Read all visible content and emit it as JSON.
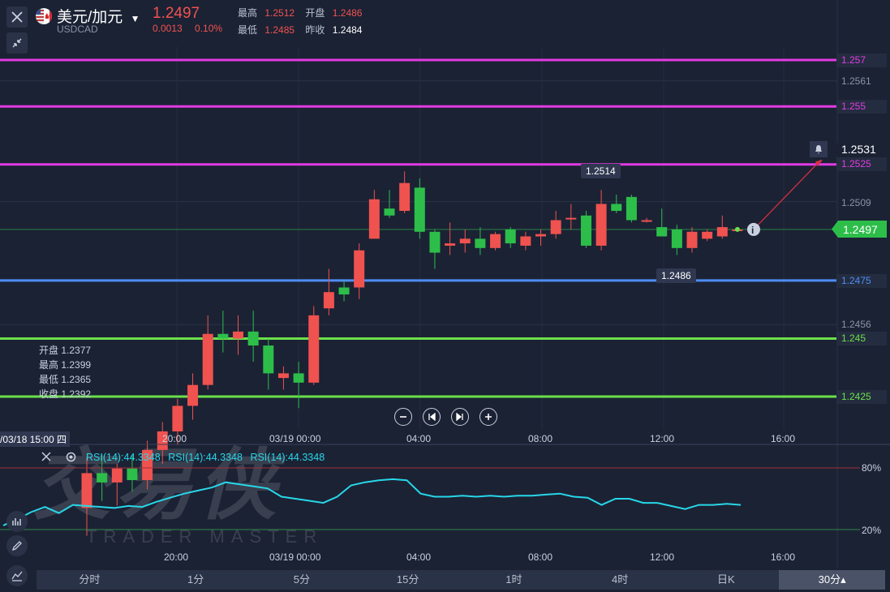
{
  "header": {
    "symbol_name": "美元/加元",
    "symbol_code": "USDCAD",
    "price": "1.2497",
    "change": "0.0013",
    "change_pct": "0.10%",
    "high_label": "最高",
    "high": "1.2512",
    "open_label": "开盘",
    "open": "1.2486",
    "low_label": "最低",
    "low": "1.2485",
    "prev_label": "昨收",
    "prev": "1.2484"
  },
  "levels": {
    "l1257": "1.257",
    "l12561": "1.2561",
    "l1255": "1.255",
    "l12531": "1.2531",
    "l12525": "1.2525",
    "l12509": "1.2509",
    "l12497": "1.2497",
    "l12475": "1.2475",
    "l12456": "1.2456",
    "l1245": "1.245",
    "l12425": "1.2425"
  },
  "bubbles": {
    "high": "1.2514",
    "low": "1.2486"
  },
  "ohlc": {
    "open": "开盘 1.2377",
    "high": "最高 1.2399",
    "low": "最低 1.2365",
    "close": "收盘 1.2392"
  },
  "xaxis": {
    "cursor": "/03/18 15:00 四",
    "t1": "20:00",
    "t2": "03/19 00:00",
    "t3": "04:00",
    "t4": "08:00",
    "t5": "12:00",
    "t6": "16:00"
  },
  "rsi": {
    "label1": "RSI(14):44.3348",
    "label2": "RSI(14):44.3348",
    "label3": "RSI(14):44.3348",
    "upper": "80%",
    "lower": "20%",
    "values": [
      24,
      30,
      37,
      42,
      36,
      44,
      43,
      42,
      41,
      43,
      42,
      47,
      51,
      55,
      58,
      61,
      66,
      64,
      62,
      60,
      52,
      50,
      48,
      46,
      52,
      63,
      66,
      68,
      69,
      68,
      55,
      52,
      52,
      53,
      52,
      53,
      52,
      53,
      53,
      54,
      55,
      52,
      51,
      44,
      50,
      50,
      46,
      46,
      43,
      40,
      44,
      44,
      45,
      44
    ]
  },
  "watermark": {
    "brand": "交易侠",
    "brand_en": "TRADER MASTER"
  },
  "tabs": [
    "分时",
    "1分",
    "5分",
    "15分",
    "1时",
    "4时",
    "日K",
    "30分▴"
  ],
  "colors": {
    "up": "#f0524f",
    "down": "#2dbe4a",
    "magenta": "#e23be3",
    "blue": "#4e8ef5",
    "green": "#6be04b",
    "rsi": "#27d7e8"
  },
  "candles": [
    {
      "o": 1.2377,
      "h": 1.2399,
      "l": 1.2365,
      "c": 1.2392
    },
    {
      "o": 1.2392,
      "h": 1.24,
      "l": 1.238,
      "c": 1.2388
    },
    {
      "o": 1.2388,
      "h": 1.2396,
      "l": 1.2378,
      "c": 1.2394
    },
    {
      "o": 1.2394,
      "h": 1.24,
      "l": 1.2384,
      "c": 1.2389
    },
    {
      "o": 1.2389,
      "h": 1.2406,
      "l": 1.2385,
      "c": 1.2402
    },
    {
      "o": 1.2402,
      "h": 1.2414,
      "l": 1.2396,
      "c": 1.241
    },
    {
      "o": 1.241,
      "h": 1.2424,
      "l": 1.2404,
      "c": 1.2421
    },
    {
      "o": 1.2421,
      "h": 1.2435,
      "l": 1.2415,
      "c": 1.243
    },
    {
      "o": 1.243,
      "h": 1.246,
      "l": 1.2428,
      "c": 1.2452
    },
    {
      "o": 1.2452,
      "h": 1.2462,
      "l": 1.2444,
      "c": 1.245
    },
    {
      "o": 1.245,
      "h": 1.246,
      "l": 1.2443,
      "c": 1.2453
    },
    {
      "o": 1.2453,
      "h": 1.2462,
      "l": 1.244,
      "c": 1.2447
    },
    {
      "o": 1.2447,
      "h": 1.245,
      "l": 1.2428,
      "c": 1.2435
    },
    {
      "o": 1.2433,
      "h": 1.2438,
      "l": 1.2428,
      "c": 1.2435
    },
    {
      "o": 1.2435,
      "h": 1.244,
      "l": 1.242,
      "c": 1.2431
    },
    {
      "o": 1.2431,
      "h": 1.2464,
      "l": 1.243,
      "c": 1.246
    },
    {
      "o": 1.2463,
      "h": 1.248,
      "l": 1.246,
      "c": 1.247
    },
    {
      "o": 1.2472,
      "h": 1.2475,
      "l": 1.2466,
      "c": 1.2469
    },
    {
      "o": 1.2472,
      "h": 1.2491,
      "l": 1.2467,
      "c": 1.2488
    },
    {
      "o": 1.2493,
      "h": 1.2514,
      "l": 1.2493,
      "c": 1.251
    },
    {
      "o": 1.2506,
      "h": 1.2514,
      "l": 1.2502,
      "c": 1.2503
    },
    {
      "o": 1.2505,
      "h": 1.2522,
      "l": 1.2504,
      "c": 1.2517
    },
    {
      "o": 1.2515,
      "h": 1.2519,
      "l": 1.2493,
      "c": 1.2496
    },
    {
      "o": 1.2496,
      "h": 1.2497,
      "l": 1.248,
      "c": 1.2487
    },
    {
      "o": 1.249,
      "h": 1.25,
      "l": 1.2486,
      "c": 1.2491
    },
    {
      "o": 1.2491,
      "h": 1.2497,
      "l": 1.2487,
      "c": 1.2493
    },
    {
      "o": 1.2493,
      "h": 1.2498,
      "l": 1.2486,
      "c": 1.2489
    },
    {
      "o": 1.2489,
      "h": 1.2496,
      "l": 1.2488,
      "c": 1.2495
    },
    {
      "o": 1.2497,
      "h": 1.2498,
      "l": 1.2489,
      "c": 1.2491
    },
    {
      "o": 1.249,
      "h": 1.2496,
      "l": 1.2488,
      "c": 1.2494
    },
    {
      "o": 1.2494,
      "h": 1.2497,
      "l": 1.249,
      "c": 1.2495
    },
    {
      "o": 1.2495,
      "h": 1.2505,
      "l": 1.2493,
      "c": 1.2501
    },
    {
      "o": 1.2502,
      "h": 1.2508,
      "l": 1.2497,
      "c": 1.2502
    },
    {
      "o": 1.2503,
      "h": 1.2505,
      "l": 1.2489,
      "c": 1.249
    },
    {
      "o": 1.249,
      "h": 1.2514,
      "l": 1.2488,
      "c": 1.2508
    },
    {
      "o": 1.2508,
      "h": 1.2512,
      "l": 1.2504,
      "c": 1.2505
    },
    {
      "o": 1.2511,
      "h": 1.2512,
      "l": 1.25,
      "c": 1.2501
    },
    {
      "o": 1.2501,
      "h": 1.2502,
      "l": 1.25,
      "c": 1.2501
    },
    {
      "o": 1.2498,
      "h": 1.2506,
      "l": 1.2494,
      "c": 1.2494
    },
    {
      "o": 1.2497,
      "h": 1.2499,
      "l": 1.2486,
      "c": 1.2489
    },
    {
      "o": 1.2489,
      "h": 1.2498,
      "l": 1.2487,
      "c": 1.2496
    },
    {
      "o": 1.2493,
      "h": 1.2497,
      "l": 1.2492,
      "c": 1.2496
    },
    {
      "o": 1.2494,
      "h": 1.2503,
      "l": 1.2493,
      "c": 1.2498
    },
    {
      "o": 1.2497,
      "h": 1.2498,
      "l": 1.2496,
      "c": 1.2497
    }
  ]
}
